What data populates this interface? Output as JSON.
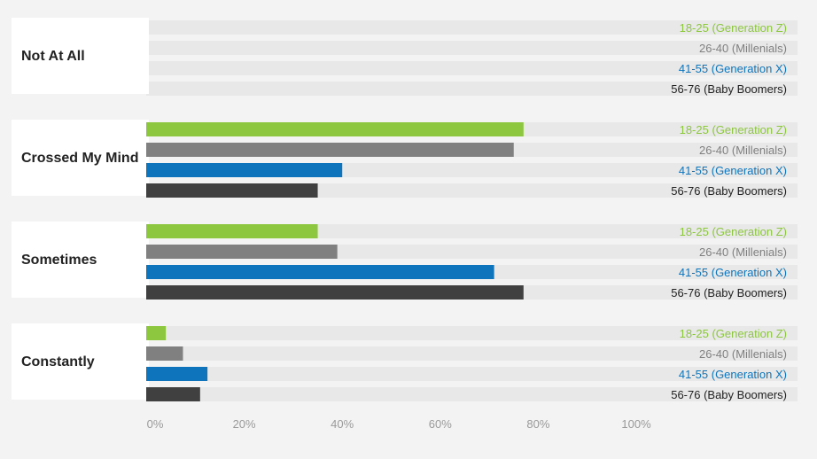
{
  "chart_data": {
    "type": "bar",
    "orientation": "horizontal",
    "grouped": true,
    "categories": [
      "Not At All",
      "Crossed My Mind",
      "Sometimes",
      "Constantly"
    ],
    "series": [
      {
        "name": "18-25 (Generation Z)",
        "color": "#8dc63f",
        "values": [
          0,
          77,
          35,
          4
        ]
      },
      {
        "name": "26-40 (Millenials)",
        "color": "#808080",
        "values": [
          0,
          75,
          39,
          7.5
        ]
      },
      {
        "name": "41-55 (Generation X)",
        "color": "#0e75bc",
        "values": [
          0,
          40,
          71,
          12.5
        ]
      },
      {
        "name": "56-76 (Baby Boomers)",
        "color": "#404040",
        "values": [
          0,
          35,
          77,
          11
        ]
      }
    ],
    "x_ticks": [
      "0%",
      "20%",
      "40%",
      "60%",
      "80%",
      "100%"
    ],
    "xlim": [
      0,
      100
    ],
    "legend": "inline, right of each bar",
    "grid": false,
    "title": "",
    "xlabel": "",
    "ylabel": ""
  }
}
